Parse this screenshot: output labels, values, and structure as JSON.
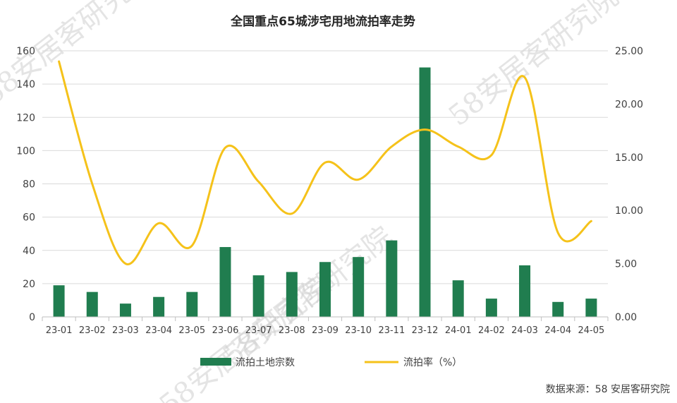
{
  "chart_data": {
    "type": "bar+line",
    "title": "全国重点65城涉宅用地流拍率走势",
    "categories": [
      "23-01",
      "23-02",
      "23-03",
      "23-04",
      "23-05",
      "23-06",
      "23-07",
      "23-08",
      "23-09",
      "23-10",
      "23-11",
      "23-12",
      "24-01",
      "24-02",
      "24-03",
      "24-04",
      "24-05"
    ],
    "series": [
      {
        "name": "流拍土地宗数",
        "type": "bar",
        "axis": "left",
        "values": [
          19,
          15,
          8,
          12,
          15,
          42,
          25,
          27,
          33,
          36,
          46,
          150,
          22,
          11,
          31,
          9,
          11
        ]
      },
      {
        "name": "流拍率（%）",
        "type": "line",
        "axis": "right",
        "values": [
          24.0,
          12.5,
          5.0,
          8.8,
          6.7,
          15.9,
          12.7,
          9.7,
          14.5,
          12.9,
          16.0,
          17.6,
          16.0,
          15.2,
          22.5,
          7.9,
          9.0
        ]
      }
    ],
    "y_left": {
      "ylim": [
        0,
        160
      ],
      "ticks": [
        "0",
        "20",
        "40",
        "60",
        "80",
        "100",
        "120",
        "140",
        "160"
      ]
    },
    "y_right": {
      "ylim": [
        0,
        25
      ],
      "ticks": [
        "0.00",
        "5.00",
        "10.00",
        "15.00",
        "20.00",
        "25.00"
      ]
    },
    "grid": true,
    "legend_position": "bottom",
    "colors": {
      "bar": "#207d4f",
      "line": "#f5c21a",
      "grid": "#d9d9d9",
      "axis": "#bfbfbf"
    }
  },
  "source_text": "数据来源：58 安居客研究院",
  "watermark_text": "58安居客研究院"
}
